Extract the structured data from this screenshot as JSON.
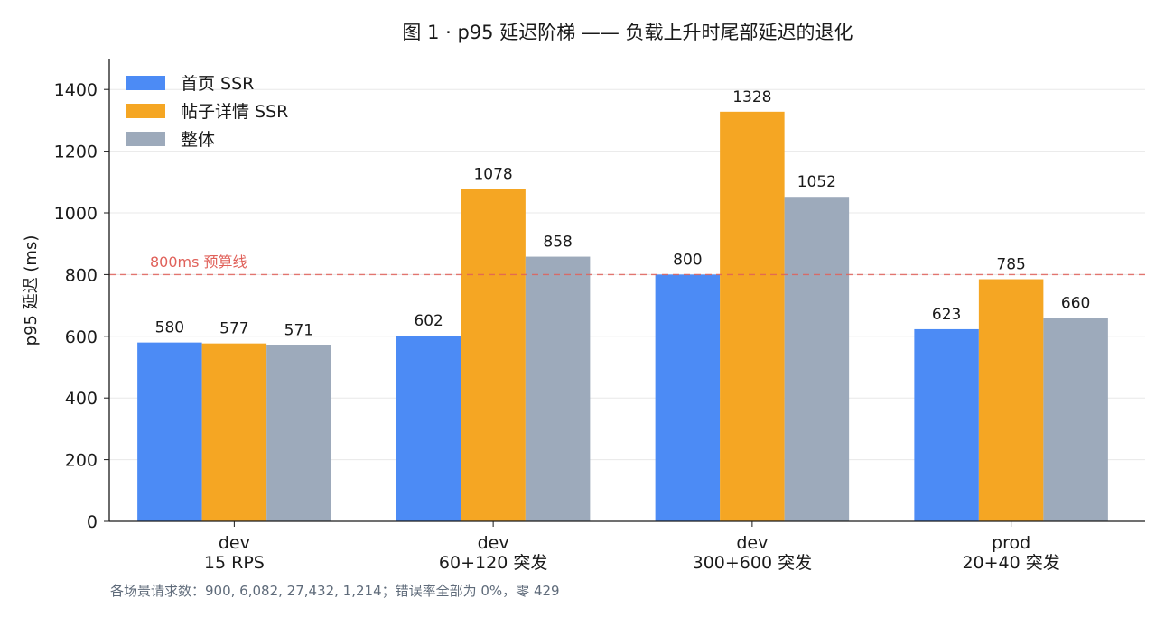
{
  "chart_data": {
    "type": "bar",
    "title": "图 1 · p95 延迟阶梯 —— 负载上升时尾部延迟的退化",
    "xlabel": "",
    "ylabel": "p95 延迟 (ms)",
    "ylim": [
      0,
      1500
    ],
    "yticks": [
      0,
      200,
      400,
      600,
      800,
      1000,
      1200,
      1400
    ],
    "grid": "horizontal",
    "legend_position": "top-left",
    "categories": [
      [
        "dev",
        "15 RPS"
      ],
      [
        "dev",
        "60+120 突发"
      ],
      [
        "dev",
        "300+600 突发"
      ],
      [
        "prod",
        "20+40 突发"
      ]
    ],
    "series": [
      {
        "name": "首页 SSR",
        "color": "#4C8BF5",
        "values": [
          580,
          602,
          800,
          623
        ]
      },
      {
        "name": "帖子详情 SSR",
        "color": "#F5A623",
        "values": [
          577,
          1078,
          1328,
          785
        ]
      },
      {
        "name": "整体",
        "color": "#9DAABB",
        "values": [
          571,
          858,
          1052,
          660
        ]
      }
    ],
    "reference_line": {
      "value": 800,
      "label": "800ms 预算线",
      "color": "#E0615A"
    },
    "footnote": "各场景请求数：900, 6,082, 27,432, 1,214；错误率全部为 0%，零 429"
  }
}
